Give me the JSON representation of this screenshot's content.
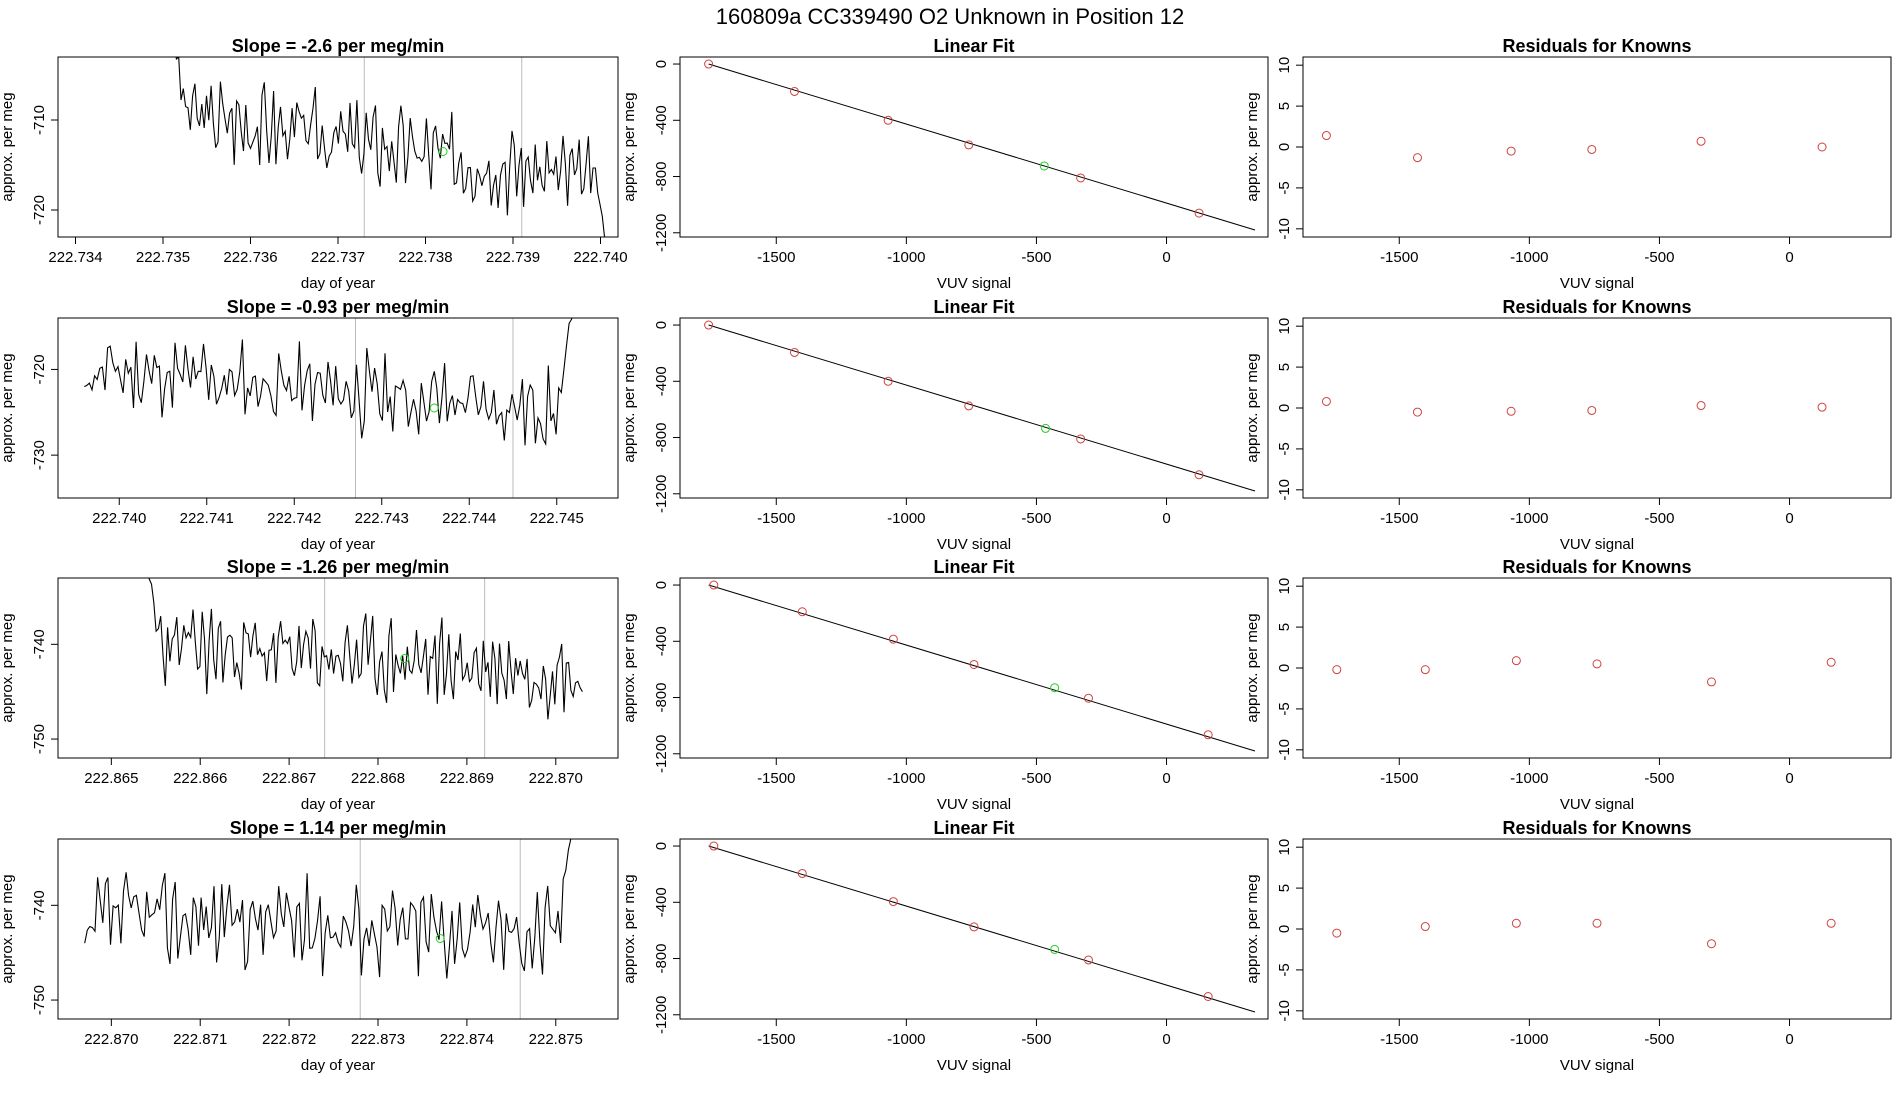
{
  "figure_title": "160809a      CC339490    O2 Unknown in Position  12",
  "colors": {
    "line": "#000000",
    "known": "#d04040",
    "unknown": "#20d020",
    "vline": "#bbbbbb",
    "frame": "#000000"
  },
  "chart_data": [
    {
      "type": "line",
      "title": "Slope =  -2.6  per meg/min",
      "xlabel": "day of year",
      "ylabel": "approx. per meg",
      "xlim": [
        222.7338,
        222.7402
      ],
      "ylim": [
        -723,
        -703
      ],
      "xticks": [
        "222.734",
        "222.735",
        "222.736",
        "222.737",
        "222.738",
        "222.739",
        "222.740"
      ],
      "yticks": [
        "-720",
        "-710"
      ],
      "vlines": [
        222.7373,
        222.7391
      ],
      "series_start": 222.7351,
      "series_end": 222.7401,
      "level_start": -709,
      "level_end": -717,
      "spike_start": -700,
      "spike_end": -725,
      "amp": 3.5,
      "seed": 3,
      "unknown_point": {
        "x": 222.7382,
        "y": -713.5
      }
    },
    {
      "type": "scatter",
      "title": "Linear Fit",
      "xlabel": "VUV signal",
      "ylabel": "approx. per meg",
      "xlim": [
        -1870,
        390
      ],
      "ylim": [
        -1230,
        50
      ],
      "xticks": [
        "-1500",
        "-1000",
        "-500",
        "0"
      ],
      "yticks": [
        "-1200",
        "-800",
        "-400",
        "0"
      ],
      "fit_line": {
        "x": [
          -1760,
          340
        ],
        "y": [
          0,
          -1180
        ]
      },
      "knowns": {
        "x": [
          -1760,
          -1430,
          -1070,
          -760,
          -330,
          125
        ],
        "y": [
          0,
          -195,
          -400,
          -575,
          -810,
          -1060
        ]
      },
      "unknown": {
        "x": -470,
        "y": -725
      }
    },
    {
      "type": "scatter",
      "title": "Residuals for Knowns",
      "xlabel": "VUV signal",
      "ylabel": "approx. per meg",
      "xlim": [
        -1870,
        390
      ],
      "ylim": [
        -11,
        11
      ],
      "xticks": [
        "-1500",
        "-1000",
        "-500",
        "0"
      ],
      "yticks": [
        "-10",
        "-5",
        "0",
        "5",
        "10"
      ],
      "knowns": {
        "x": [
          -1780,
          -1430,
          -1070,
          -760,
          -340,
          125
        ],
        "y": [
          1.4,
          -1.3,
          -0.5,
          -0.3,
          0.7,
          0.0
        ]
      }
    },
    {
      "type": "line",
      "title": "Slope =  -0.93  per meg/min",
      "xlabel": "day of year",
      "ylabel": "approx. per meg",
      "xlim": [
        222.7393,
        222.7457
      ],
      "ylim": [
        -735,
        -714
      ],
      "xticks": [
        "222.740",
        "222.741",
        "222.742",
        "222.743",
        "222.744",
        "222.745"
      ],
      "yticks": [
        "-730",
        "-720"
      ],
      "vlines": [
        222.7427,
        222.7445
      ],
      "series_start": 222.7396,
      "series_end": 222.7452,
      "level_start": -720,
      "level_end": -725,
      "spike_start": -722,
      "spike_end": -712,
      "amp": 3.5,
      "seed": 11,
      "unknown_point": {
        "x": 222.7436,
        "y": -724.5
      }
    },
    {
      "type": "scatter",
      "title": "Linear Fit",
      "xlabel": "VUV signal",
      "ylabel": "approx. per meg",
      "xlim": [
        -1870,
        390
      ],
      "ylim": [
        -1230,
        50
      ],
      "xticks": [
        "-1500",
        "-1000",
        "-500",
        "0"
      ],
      "yticks": [
        "-1200",
        "-800",
        "-400",
        "0"
      ],
      "fit_line": {
        "x": [
          -1760,
          340
        ],
        "y": [
          0,
          -1180
        ]
      },
      "knowns": {
        "x": [
          -1760,
          -1430,
          -1070,
          -760,
          -330,
          125
        ],
        "y": [
          0,
          -195,
          -400,
          -575,
          -810,
          -1065
        ]
      },
      "unknown": {
        "x": -465,
        "y": -735
      }
    },
    {
      "type": "scatter",
      "title": "Residuals for Knowns",
      "xlabel": "VUV signal",
      "ylabel": "approx. per meg",
      "xlim": [
        -1870,
        390
      ],
      "ylim": [
        -11,
        11
      ],
      "xticks": [
        "-1500",
        "-1000",
        "-500",
        "0"
      ],
      "yticks": [
        "-10",
        "-5",
        "0",
        "5",
        "10"
      ],
      "knowns": {
        "x": [
          -1780,
          -1430,
          -1070,
          -760,
          -340,
          125
        ],
        "y": [
          0.8,
          -0.5,
          -0.4,
          -0.3,
          0.3,
          0.1
        ]
      }
    },
    {
      "type": "line",
      "title": "Slope =  -1.26  per meg/min",
      "xlabel": "day of year",
      "ylabel": "approx. per meg",
      "xlim": [
        222.8644,
        222.8707
      ],
      "ylim": [
        -752,
        -733
      ],
      "xticks": [
        "222.865",
        "222.866",
        "222.867",
        "222.868",
        "222.869",
        "222.870"
      ],
      "yticks": [
        "-750",
        "-740"
      ],
      "vlines": [
        222.8674,
        222.8692
      ],
      "series_start": 222.8654,
      "series_end": 222.8703,
      "level_start": -740,
      "level_end": -743,
      "spike_start": -732,
      "spike_end": -745,
      "amp": 3.3,
      "seed": 23,
      "unknown_point": {
        "x": 222.8683,
        "y": -741.5
      }
    },
    {
      "type": "scatter",
      "title": "Linear Fit",
      "xlabel": "VUV signal",
      "ylabel": "approx. per meg",
      "xlim": [
        -1870,
        390
      ],
      "ylim": [
        -1230,
        50
      ],
      "xticks": [
        "-1500",
        "-1000",
        "-500",
        "0"
      ],
      "yticks": [
        "-1200",
        "-800",
        "-400",
        "0"
      ],
      "fit_line": {
        "x": [
          -1760,
          340
        ],
        "y": [
          0,
          -1180
        ]
      },
      "knowns": {
        "x": [
          -1740,
          -1400,
          -1050,
          -740,
          -300,
          160
        ],
        "y": [
          0,
          -190,
          -385,
          -565,
          -805,
          -1065
        ]
      },
      "unknown": {
        "x": -430,
        "y": -730
      }
    },
    {
      "type": "scatter",
      "title": "Residuals for Knowns",
      "xlabel": "VUV signal",
      "ylabel": "approx. per meg",
      "xlim": [
        -1870,
        390
      ],
      "ylim": [
        -11,
        11
      ],
      "xticks": [
        "-1500",
        "-1000",
        "-500",
        "0"
      ],
      "yticks": [
        "-10",
        "-5",
        "0",
        "5",
        "10"
      ],
      "knowns": {
        "x": [
          -1740,
          -1400,
          -1050,
          -740,
          -300,
          160
        ],
        "y": [
          -0.2,
          -0.2,
          0.9,
          0.5,
          -1.7,
          0.7
        ]
      }
    },
    {
      "type": "line",
      "title": "Slope =  1.14  per meg/min",
      "xlabel": "day of year",
      "ylabel": "approx. per meg",
      "xlim": [
        222.8694,
        222.8757
      ],
      "ylim": [
        -752,
        -733
      ],
      "xticks": [
        "222.870",
        "222.871",
        "222.872",
        "222.873",
        "222.874",
        "222.875"
      ],
      "yticks": [
        "-750",
        "-740"
      ],
      "vlines": [
        222.8728,
        222.8746
      ],
      "series_start": 222.8697,
      "series_end": 222.8752,
      "level_start": -741,
      "level_end": -743,
      "spike_start": -744,
      "spike_end": -730,
      "amp": 3.6,
      "seed": 37,
      "unknown_point": {
        "x": 222.8737,
        "y": -743.5
      }
    },
    {
      "type": "scatter",
      "title": "Linear Fit",
      "xlabel": "VUV signal",
      "ylabel": "approx. per meg",
      "xlim": [
        -1870,
        390
      ],
      "ylim": [
        -1230,
        50
      ],
      "xticks": [
        "-1500",
        "-1000",
        "-500",
        "0"
      ],
      "yticks": [
        "-1200",
        "-800",
        "-400",
        "0"
      ],
      "fit_line": {
        "x": [
          -1760,
          340
        ],
        "y": [
          0,
          -1180
        ]
      },
      "knowns": {
        "x": [
          -1740,
          -1400,
          -1050,
          -740,
          -300,
          160
        ],
        "y": [
          0,
          -195,
          -395,
          -575,
          -810,
          -1070
        ]
      },
      "unknown": {
        "x": -430,
        "y": -735
      }
    },
    {
      "type": "scatter",
      "title": "Residuals for Knowns",
      "xlabel": "VUV signal",
      "ylabel": "approx. per meg",
      "xlim": [
        -1870,
        390
      ],
      "ylim": [
        -11,
        11
      ],
      "xticks": [
        "-1500",
        "-1000",
        "-500",
        "0"
      ],
      "yticks": [
        "-10",
        "-5",
        "0",
        "5",
        "10"
      ],
      "knowns": {
        "x": [
          -1740,
          -1400,
          -1050,
          -740,
          -300,
          160
        ],
        "y": [
          -0.5,
          0.3,
          0.7,
          0.7,
          -1.8,
          0.7
        ]
      }
    }
  ]
}
